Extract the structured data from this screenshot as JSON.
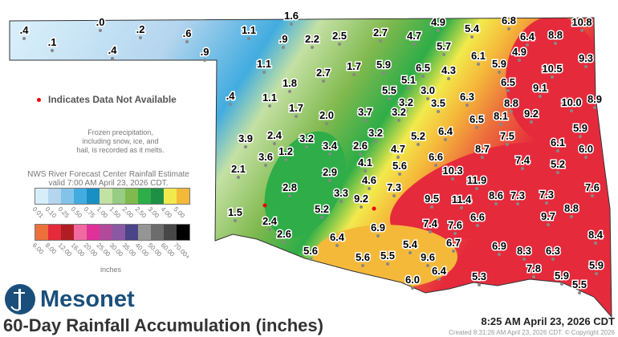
{
  "title": "60-Day Rainfall Accumulation (inches)",
  "logo_text": "Mesonet",
  "timestamp": "8:25 AM April 23, 2026 CDT",
  "created": "Created 8:31:26 AM April 23, 2026 CDT. © Copyright 2026",
  "na_legend": "Indicates Data Not Available",
  "frozen_note": [
    "Frozen precipitation,",
    "including snow, ice, and",
    "hail, is recorded as it melts."
  ],
  "rfc_note": [
    "NWS River Forecast Center Rainfall Estimate",
    "valid 7:00 AM April 23, 2026 CDT."
  ],
  "units": "inches",
  "scale_row1": [
    {
      "label": "0.01",
      "color": "#d6eefa"
    },
    {
      "label": "0.10",
      "color": "#b4d5ee"
    },
    {
      "label": "0.25",
      "color": "#84c3e8"
    },
    {
      "label": "0.50",
      "color": "#42ace0"
    },
    {
      "label": "0.75",
      "color": "#1a8fc5"
    },
    {
      "label": "1.00",
      "color": "#c4e1a4"
    },
    {
      "label": "1.50",
      "color": "#96cc84"
    },
    {
      "label": "2.00",
      "color": "#80b94e"
    },
    {
      "label": "2.50",
      "color": "#2ead48"
    },
    {
      "label": "3.00",
      "color": "#1f8f45"
    },
    {
      "label": "4.00",
      "color": "#f2ea4c"
    },
    {
      "label": "5.00",
      "color": "#f5b93a"
    }
  ],
  "scale_row2": [
    {
      "label": "6.00",
      "color": "#ec703c"
    },
    {
      "label": "8.00",
      "color": "#e52a3c"
    },
    {
      "label": "12.00",
      "color": "#b01e24"
    },
    {
      "label": "16.00",
      "color": "#f06aa0"
    },
    {
      "label": "20.00",
      "color": "#e0309a"
    },
    {
      "label": "25.00",
      "color": "#b24a9c"
    },
    {
      "label": "30.00",
      "color": "#8a58a4"
    },
    {
      "label": "35.00",
      "color": "#4a4488"
    },
    {
      "label": "40.00",
      "color": "#959595"
    },
    {
      "label": "50.00",
      "color": "#6c6c6c"
    },
    {
      "label": "60.00",
      "color": "#474747"
    },
    {
      "label": "70.00+",
      "color": "#000000"
    }
  ],
  "stations": [
    ".4",
    ".0",
    ".1",
    ".2",
    ".4",
    ".6",
    ".9",
    "1.6",
    "1.1",
    ".9",
    "2.2",
    "2.5",
    "2.7",
    "4.7",
    "4.9",
    "5.4",
    "6.8",
    "10.8",
    "6.4",
    "8.8",
    "5.7",
    "4.9",
    "9.3",
    "6.1",
    "10.5",
    "1.1",
    "1.7",
    "5.9",
    "6.5",
    "4.3",
    "5.9",
    "2.7",
    "5.1",
    "1.8",
    "6.5",
    "9.1",
    "5.5",
    "3.0",
    "3.2",
    "3.5",
    ".4",
    "1.1",
    "6.3",
    "8.8",
    "10.0",
    "8.9",
    "1.7",
    "3.7",
    "3.2",
    "2.0",
    "6.5",
    "8.1",
    "9.2",
    "3.2",
    "5.2",
    "6.4",
    "5.9",
    "3.9",
    "2.4",
    "3.2",
    "1.2",
    "3.4",
    "2.6",
    "4.7",
    "7.5",
    "6.1",
    "6.0",
    "8.7",
    "6.6",
    "3.6",
    "2.1",
    "4.1",
    "5.6",
    "7.4",
    "5.2",
    "10.3",
    "2.9",
    "4.6",
    "11.9",
    "2.8",
    "7.3",
    "7.6",
    "3.3",
    "9.2",
    "9.5",
    "11.4",
    "8.6",
    "7.3",
    "7.3",
    "5.2",
    "9.7",
    "8.8",
    "1.5",
    "2.4",
    "6.6",
    "7.4",
    "7.6",
    "6.9",
    "2.6",
    "8.4",
    "6.4",
    "5.4",
    "6.7",
    "6.9",
    "8.3",
    "6.3",
    "5.6",
    "5.6",
    "5.5",
    "9.6",
    "6.4",
    "7.8",
    "5.9",
    "5.3",
    "5.9",
    "6.0",
    "5.5"
  ]
}
